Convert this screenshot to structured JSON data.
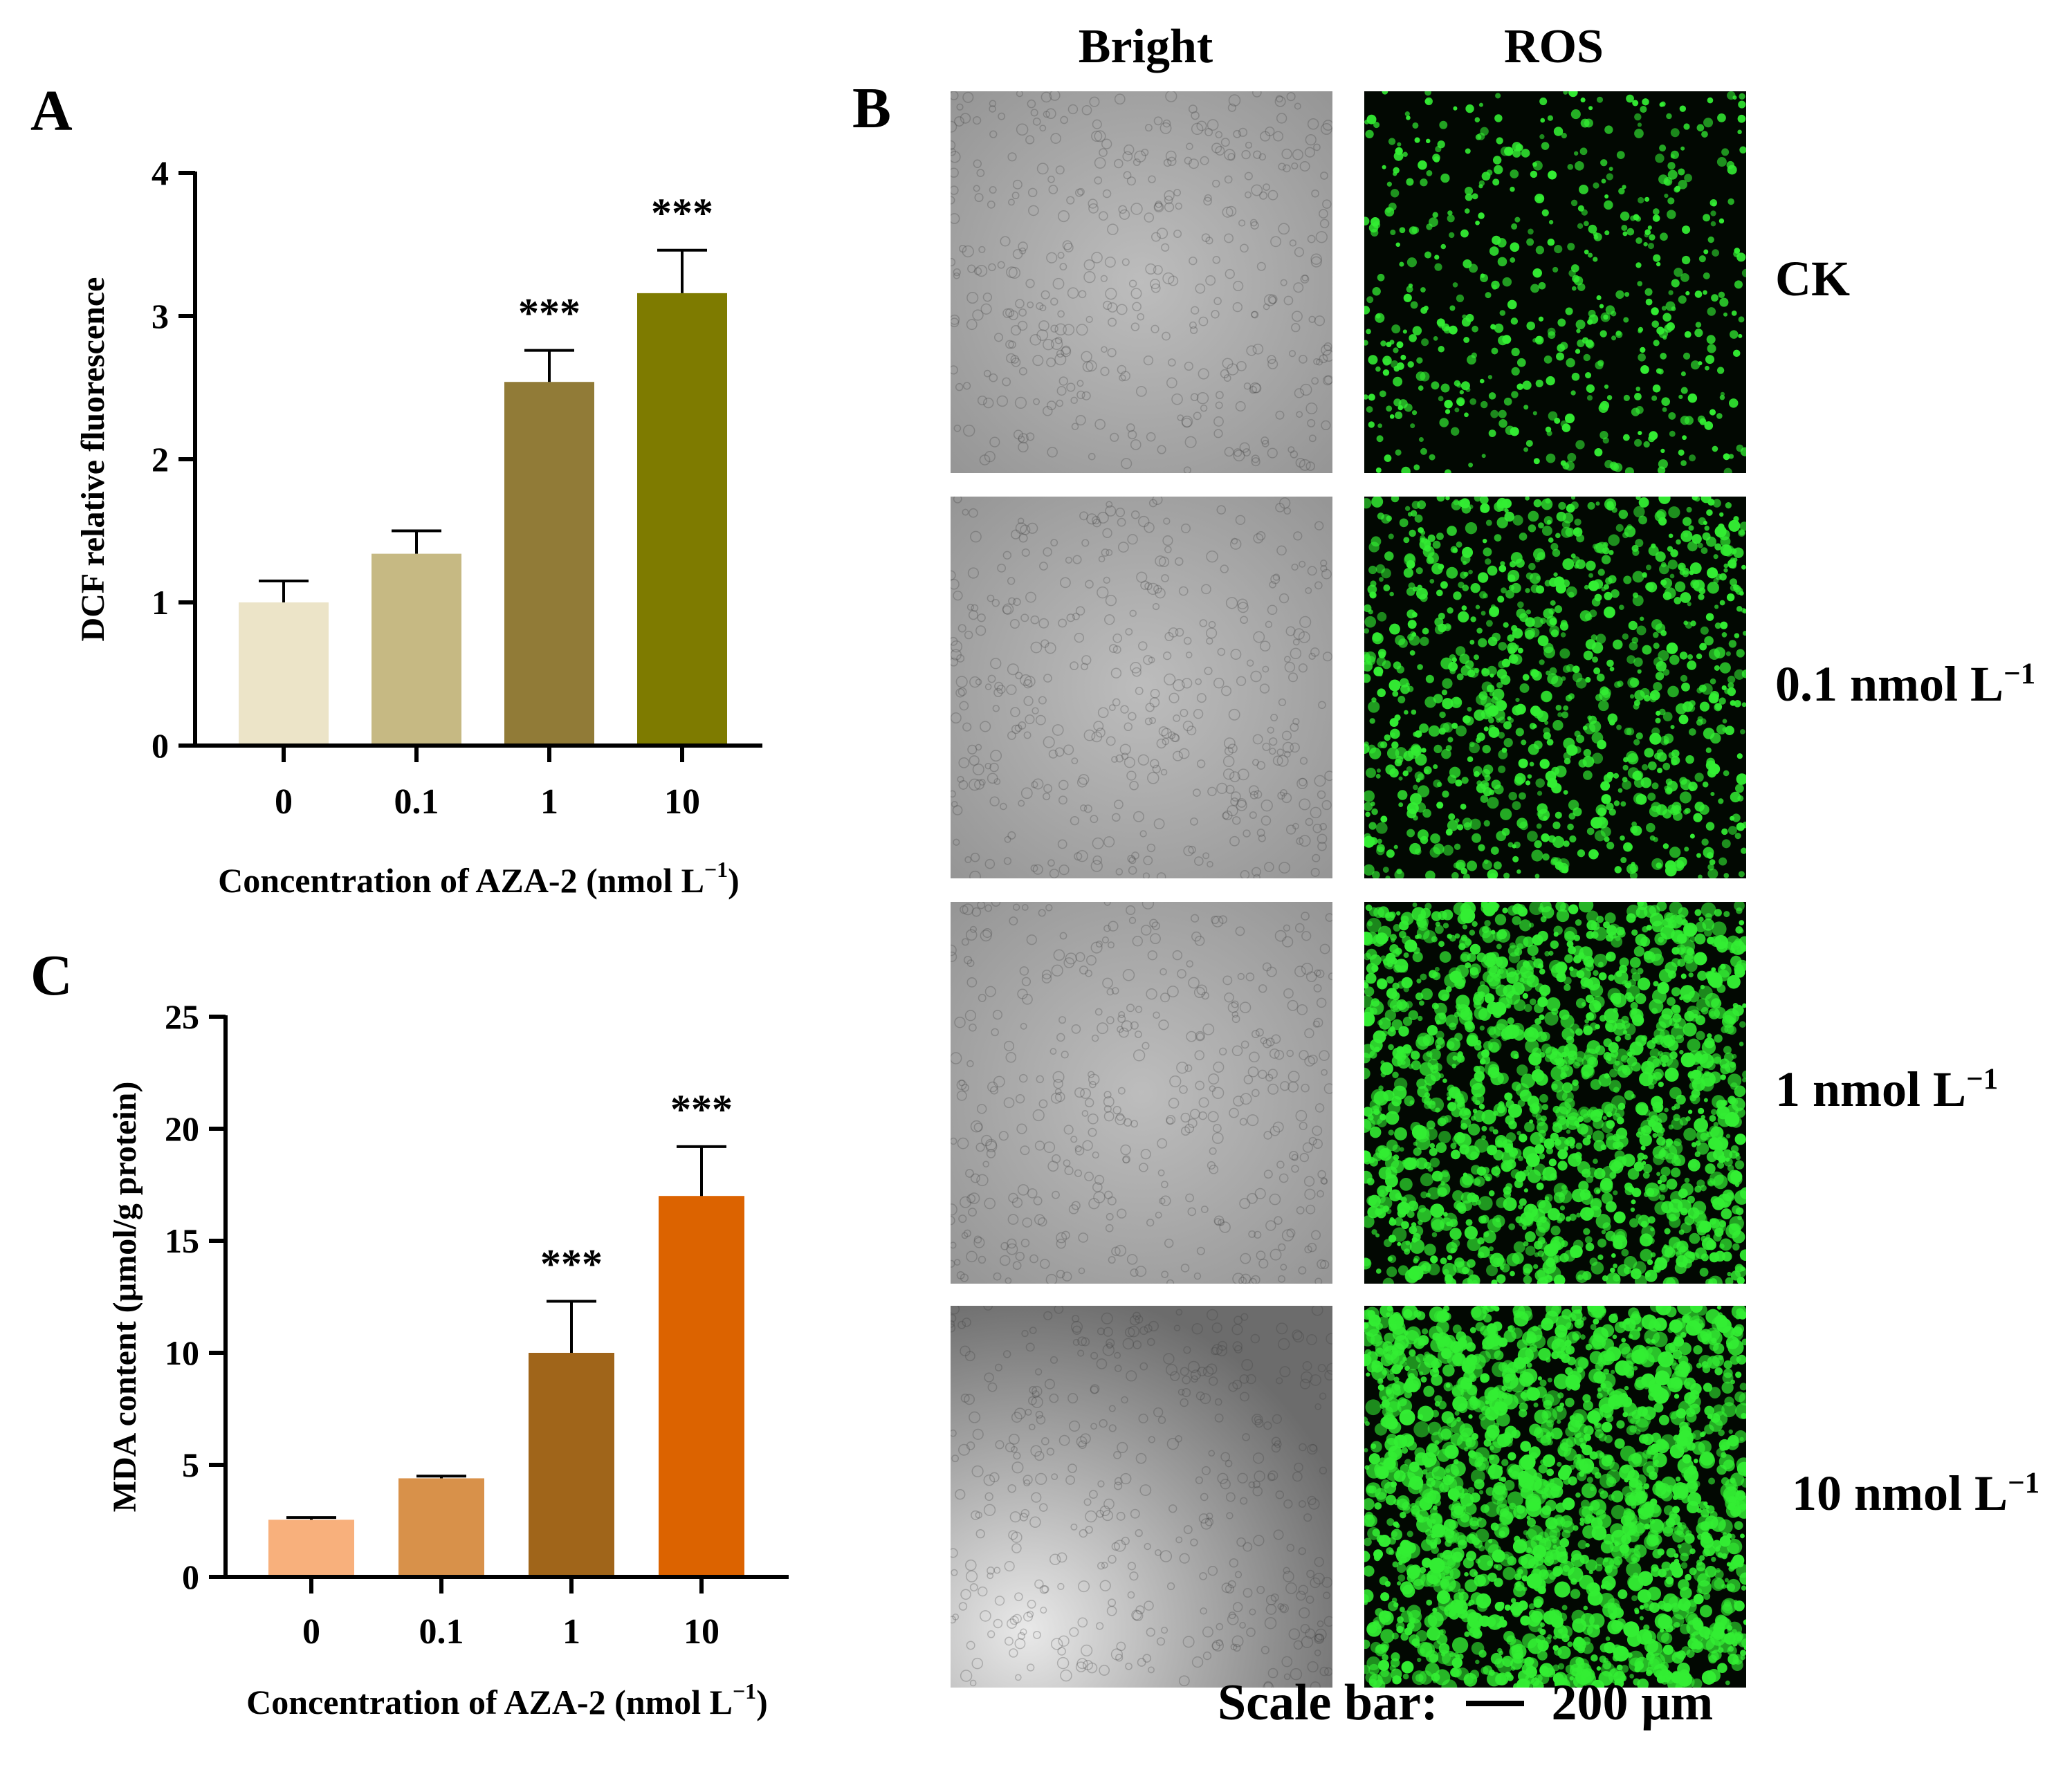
{
  "panels": {
    "a": "A",
    "b": "B",
    "c": "C"
  },
  "chart_data": [
    {
      "type": "bar",
      "panel": "A",
      "title": "",
      "ylabel": "DCF relative fluorescence",
      "xlabel": "Concentration of AZA-2 (nmol L",
      "xlabel_sup": "−1",
      "xlabel_end": ")",
      "categories": [
        "0",
        "0.1",
        "1",
        "10"
      ],
      "values": [
        1.0,
        1.34,
        2.54,
        3.16
      ],
      "errors": [
        0.15,
        0.16,
        0.22,
        0.3
      ],
      "significance": [
        "",
        "",
        "***",
        "***"
      ],
      "colors": [
        "#ece4c8",
        "#c6b983",
        "#917b37",
        "#7e7b00"
      ],
      "ylim": [
        0,
        4
      ],
      "yticks": [
        "0",
        "1",
        "2",
        "3",
        "4"
      ],
      "grid": false
    },
    {
      "type": "bar",
      "panel": "C",
      "title": "",
      "ylabel": "MDA content (µmol/g protein)",
      "xlabel": "Concentration of AZA-2 (nmol L",
      "xlabel_sup": "−1",
      "xlabel_end": ")",
      "categories": [
        "0",
        "0.1",
        "1",
        "10"
      ],
      "values": [
        2.55,
        4.4,
        10.0,
        17.0
      ],
      "errors": [
        0.1,
        0.1,
        2.3,
        2.2
      ],
      "significance": [
        "",
        "",
        "***",
        "***"
      ],
      "colors": [
        "#f8b07c",
        "#d8914a",
        "#a0651a",
        "#dc6300"
      ],
      "ylim": [
        0,
        25
      ],
      "yticks": [
        "0",
        "5",
        "10",
        "15",
        "20",
        "25"
      ],
      "grid": false
    }
  ],
  "microscopy": {
    "columns": [
      "Bright",
      "ROS"
    ],
    "rows": [
      {
        "label": "CK",
        "unit": "",
        "sup": "",
        "ros_level": 0.18
      },
      {
        "label": "0.1",
        "unit": " nmol L",
        "sup": "−1",
        "ros_level": 0.45
      },
      {
        "label": "1",
        "unit": " nmol L",
        "sup": "−1",
        "ros_level": 0.8
      },
      {
        "label": "10",
        "unit": " nmol L",
        "sup": "−1",
        "ros_level": 0.95
      }
    ],
    "bright_color": "#a9a9a9",
    "ros_color": "#33ee33",
    "scale_bar_label": "Scale bar:",
    "scale_bar_value": "200 µm"
  }
}
